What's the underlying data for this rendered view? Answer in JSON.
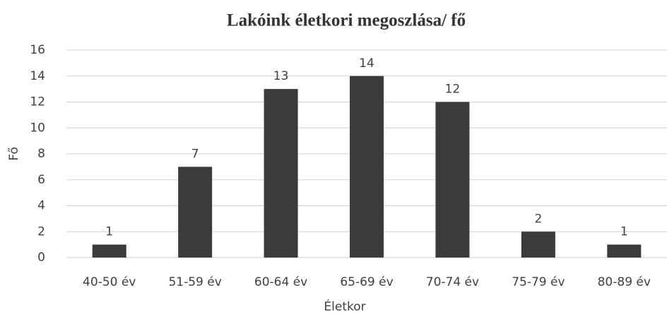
{
  "chart_data": {
    "type": "bar",
    "title": "Lakóink életkori megoszlása/ fő",
    "x_label": "Életkor",
    "y_label": "Fő",
    "categories": [
      "40-50 év",
      "51-59 év",
      "60-64 év",
      "65-69 év",
      "70-74 év",
      "75-79 év",
      "80-89 év"
    ],
    "values": [
      1,
      7,
      13,
      14,
      12,
      2,
      1
    ],
    "color": "#3b3b3b",
    "ylim": [
      0,
      16
    ],
    "yticks": [
      0,
      2,
      4,
      6,
      8,
      10,
      12,
      14,
      16
    ],
    "grid": true
  }
}
